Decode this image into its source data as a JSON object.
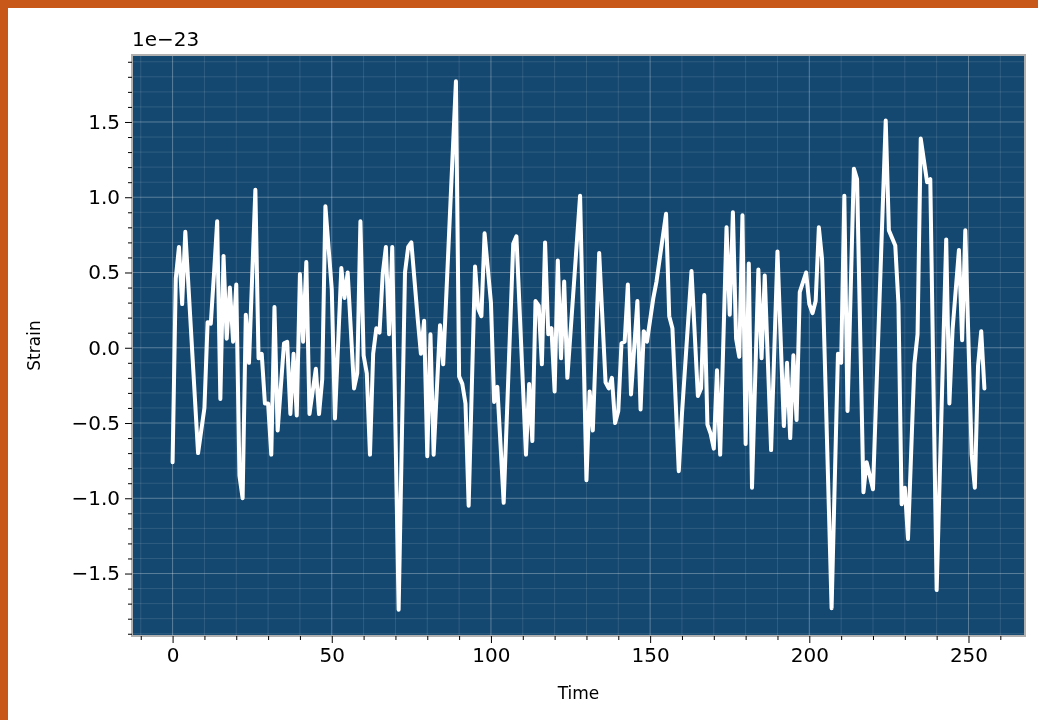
{
  "chart_data": {
    "type": "line",
    "xlabel": "Time",
    "ylabel": "Strain",
    "annotations": [
      "1e−23"
    ],
    "grid": true,
    "marker": "none",
    "line_style": "solid",
    "xlim": [
      -12.75,
      267.75
    ],
    "ylim": [
      -1.915,
      1.945
    ],
    "xticks": [
      {
        "value": -10,
        "label": null
      },
      0,
      {
        "value": 10,
        "label": null
      },
      {
        "value": 20,
        "label": null
      },
      {
        "value": 30,
        "label": null
      },
      {
        "value": 40,
        "label": null
      },
      50,
      {
        "value": 60,
        "label": null
      },
      {
        "value": 70,
        "label": null
      },
      {
        "value": 80,
        "label": null
      },
      {
        "value": 90,
        "label": null
      },
      100,
      {
        "value": 110,
        "label": null
      },
      {
        "value": 120,
        "label": null
      },
      {
        "value": 130,
        "label": null
      },
      {
        "value": 140,
        "label": null
      },
      150,
      {
        "value": 160,
        "label": null
      },
      {
        "value": 170,
        "label": null
      },
      {
        "value": 180,
        "label": null
      },
      {
        "value": 190,
        "label": null
      },
      200,
      {
        "value": 210,
        "label": null
      },
      {
        "value": 220,
        "label": null
      },
      {
        "value": 230,
        "label": null
      },
      {
        "value": 240,
        "label": null
      },
      250,
      {
        "value": 260,
        "label": null
      }
    ],
    "yticks": [
      {
        "value": -1.9,
        "label": null
      },
      {
        "value": -1.8,
        "label": null
      },
      {
        "value": -1.7,
        "label": null
      },
      {
        "value": -1.6,
        "label": null
      },
      {
        "value": -1.5,
        "label": "−1.5"
      },
      {
        "value": -1.4,
        "label": null
      },
      {
        "value": -1.3,
        "label": null
      },
      {
        "value": -1.2,
        "label": null
      },
      {
        "value": -1.1,
        "label": null
      },
      {
        "value": -1.0,
        "label": "−1.0"
      },
      {
        "value": -0.9,
        "label": null
      },
      {
        "value": -0.8,
        "label": null
      },
      {
        "value": -0.7,
        "label": null
      },
      {
        "value": -0.6,
        "label": null
      },
      {
        "value": -0.5,
        "label": "−0.5"
      },
      {
        "value": -0.4,
        "label": null
      },
      {
        "value": -0.3,
        "label": null
      },
      {
        "value": -0.2,
        "label": null
      },
      {
        "value": -0.1,
        "label": null
      },
      {
        "value": 0,
        "label": "0.0"
      },
      {
        "value": 0.1,
        "label": null
      },
      {
        "value": 0.2,
        "label": null
      },
      {
        "value": 0.3,
        "label": null
      },
      {
        "value": 0.4,
        "label": null
      },
      {
        "value": 0.5,
        "label": "0.5"
      },
      {
        "value": 0.6,
        "label": null
      },
      {
        "value": 0.7,
        "label": null
      },
      {
        "value": 0.8,
        "label": null
      },
      {
        "value": 0.9,
        "label": null
      },
      {
        "value": 1.0,
        "label": "1.0"
      },
      {
        "value": 1.1,
        "label": null
      },
      {
        "value": 1.2,
        "label": null
      },
      {
        "value": 1.3,
        "label": null
      },
      {
        "value": 1.4,
        "label": null
      },
      {
        "value": 1.5,
        "label": "1.5"
      },
      {
        "value": 1.6,
        "label": null
      },
      {
        "value": 1.7,
        "label": null
      },
      {
        "value": 1.8,
        "label": null
      },
      {
        "value": 1.9,
        "label": null
      }
    ],
    "series": [
      {
        "color": "#ffffff",
        "x": [
          0,
          1,
          2,
          3,
          4,
          8,
          10,
          11,
          12,
          13,
          14,
          15,
          16,
          17,
          18,
          19,
          20,
          21,
          22,
          23,
          24,
          26,
          27,
          28,
          29,
          30,
          31,
          32,
          33,
          35,
          36,
          37,
          38,
          39,
          40,
          41,
          42,
          43,
          45,
          46,
          47,
          48,
          50,
          51,
          53,
          54,
          55,
          57,
          58,
          59,
          60,
          61,
          62,
          63,
          64,
          65,
          66,
          67,
          68,
          69,
          71,
          73,
          74,
          75,
          77,
          78,
          79,
          80,
          81,
          82,
          84,
          85,
          89,
          90,
          91,
          92,
          93,
          95,
          96,
          97,
          98,
          100,
          101,
          102,
          103,
          104,
          107,
          108,
          111,
          112,
          113,
          114,
          115,
          116,
          117,
          118,
          119,
          120,
          121,
          122,
          123,
          124,
          128,
          130,
          131,
          132,
          134,
          136,
          137,
          138,
          139,
          140,
          141,
          142,
          143,
          144,
          146,
          147,
          148,
          149,
          151,
          152,
          155,
          156,
          157,
          159,
          160,
          163,
          165,
          166,
          167,
          168,
          169,
          170,
          171,
          172,
          174,
          175,
          176,
          177,
          178,
          179,
          180,
          181,
          182,
          184,
          185,
          186,
          188,
          190,
          192,
          193,
          194,
          195,
          196,
          197,
          199,
          200,
          201,
          202,
          203,
          204,
          207,
          209,
          210,
          211,
          212,
          214,
          215,
          217,
          218,
          220,
          224,
          225,
          227,
          228,
          229,
          230,
          231,
          233,
          234,
          235,
          237,
          238,
          240,
          243,
          244,
          245,
          247,
          248,
          249,
          251,
          252,
          253,
          254,
          255
        ],
        "values": [
          -0.76,
          0.46,
          0.67,
          0.29,
          0.77,
          -0.7,
          -0.4,
          0.17,
          0.16,
          0.49,
          0.84,
          -0.34,
          0.61,
          0.06,
          0.4,
          0.04,
          0.42,
          -0.85,
          -1.0,
          0.22,
          -0.1,
          1.05,
          -0.07,
          -0.04,
          -0.37,
          -0.37,
          -0.71,
          0.27,
          -0.55,
          0.03,
          0.04,
          -0.44,
          -0.04,
          -0.45,
          0.49,
          0.04,
          0.57,
          -0.44,
          -0.14,
          -0.44,
          -0.21,
          0.94,
          0.39,
          -0.47,
          0.53,
          0.33,
          0.5,
          -0.27,
          -0.17,
          0.84,
          -0.05,
          -0.17,
          -0.71,
          -0.04,
          0.13,
          0.1,
          0.49,
          0.67,
          0.09,
          0.67,
          -1.74,
          0.5,
          0.67,
          0.7,
          0.19,
          -0.04,
          0.18,
          -0.72,
          0.09,
          -0.71,
          0.15,
          -0.11,
          1.77,
          -0.19,
          -0.24,
          -0.37,
          -1.05,
          0.54,
          0.26,
          0.21,
          0.76,
          0.3,
          -0.36,
          -0.26,
          -0.64,
          -1.03,
          0.69,
          0.74,
          -0.71,
          -0.24,
          -0.62,
          0.31,
          0.28,
          -0.11,
          0.7,
          0.09,
          0.13,
          -0.29,
          0.58,
          -0.07,
          0.44,
          -0.2,
          1.01,
          -0.88,
          -0.29,
          -0.55,
          0.63,
          -0.23,
          -0.27,
          -0.2,
          -0.5,
          -0.42,
          0.03,
          0.04,
          0.42,
          -0.31,
          0.31,
          -0.41,
          0.11,
          0.04,
          0.33,
          0.44,
          0.89,
          0.21,
          0.13,
          -0.82,
          -0.44,
          0.51,
          -0.32,
          -0.27,
          0.35,
          -0.51,
          -0.57,
          -0.67,
          -0.15,
          -0.71,
          0.8,
          0.22,
          0.9,
          0.06,
          -0.06,
          0.88,
          -0.64,
          0.56,
          -0.93,
          0.52,
          -0.07,
          0.48,
          -0.68,
          0.64,
          -0.52,
          -0.1,
          -0.6,
          -0.05,
          -0.48,
          0.37,
          0.5,
          0.29,
          0.23,
          0.31,
          0.8,
          0.59,
          -1.73,
          -0.04,
          -0.1,
          1.01,
          -0.42,
          1.19,
          1.12,
          -0.96,
          -0.76,
          -0.94,
          1.51,
          0.78,
          0.68,
          0.29,
          -1.04,
          -0.93,
          -1.27,
          -0.11,
          0.09,
          1.39,
          1.1,
          1.12,
          -1.61,
          0.72,
          -0.37,
          0.12,
          0.65,
          0.05,
          0.78,
          -0.71,
          -0.93,
          -0.12,
          0.11,
          -0.27
        ]
      }
    ]
  }
}
